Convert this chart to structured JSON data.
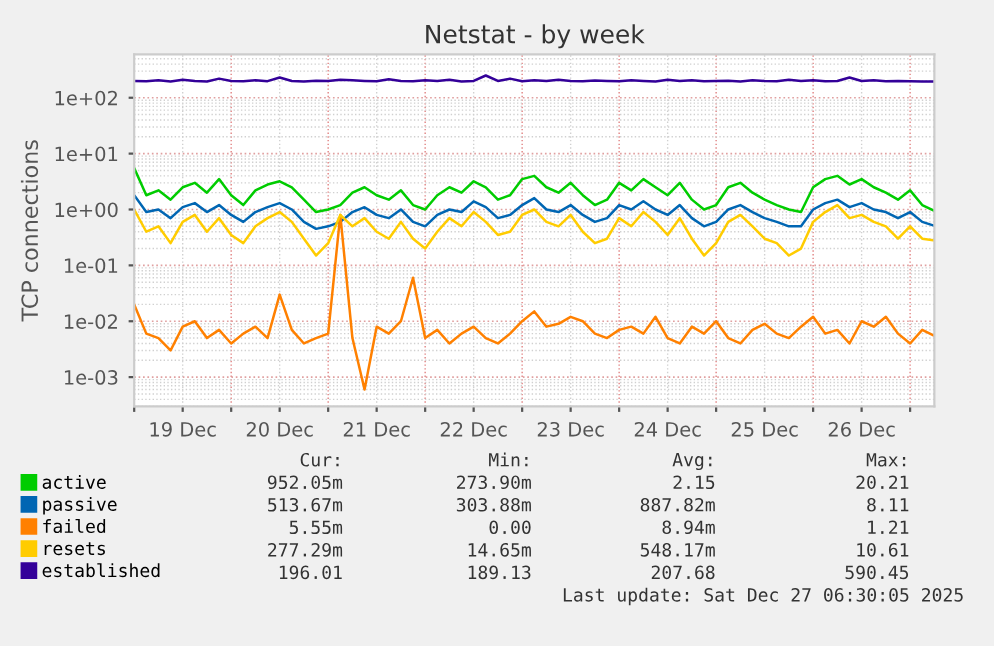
{
  "chart_data": {
    "type": "line",
    "title": "Netstat - by week",
    "ylabel": "TCP connections",
    "log": "y",
    "grid": true,
    "legend": "bottom",
    "marker": "none",
    "line_style": "solid",
    "xlim": [
      "2025-12-19T00:00",
      "2025-12-27T06:00"
    ],
    "xticks": [
      {
        "value": "2025-12-19T00:00",
        "label": null
      },
      {
        "value": "2025-12-20T00:00",
        "label": null
      },
      {
        "value": "2025-12-21T00:00",
        "label": null
      },
      {
        "value": "2025-12-22T00:00",
        "label": null
      },
      {
        "value": "2025-12-23T00:00",
        "label": null
      },
      {
        "value": "2025-12-24T00:00",
        "label": null
      },
      {
        "value": "2025-12-25T00:00",
        "label": null
      },
      {
        "value": "2025-12-26T00:00",
        "label": null
      },
      {
        "value": "2025-12-27T00:00",
        "label": null
      },
      {
        "value": "2025-12-19T12:00",
        "label": "19 Dec"
      },
      {
        "value": "2025-12-20T12:00",
        "label": "20 Dec"
      },
      {
        "value": "2025-12-21T12:00",
        "label": "21 Dec"
      },
      {
        "value": "2025-12-22T12:00",
        "label": "22 Dec"
      },
      {
        "value": "2025-12-23T12:00",
        "label": "23 Dec"
      },
      {
        "value": "2025-12-24T12:00",
        "label": "24 Dec"
      },
      {
        "value": "2025-12-25T12:00",
        "label": "25 Dec"
      },
      {
        "value": "2025-12-26T12:00",
        "label": "26 Dec"
      }
    ],
    "ylim": [
      0.0003,
      600
    ],
    "yticks": [
      {
        "value": 0.001,
        "label": "1e-03"
      },
      {
        "value": 0.01,
        "label": "1e-02"
      },
      {
        "value": 0.1,
        "label": "1e-01"
      },
      {
        "value": 1,
        "label": "1e+00"
      },
      {
        "value": 10,
        "label": "1e+01"
      },
      {
        "value": 100,
        "label": "1e+02"
      }
    ],
    "x": [
      "2025-12-19T00:00",
      "2025-12-19T03:00",
      "2025-12-19T06:00",
      "2025-12-19T09:00",
      "2025-12-19T12:00",
      "2025-12-19T15:00",
      "2025-12-19T18:00",
      "2025-12-19T21:00",
      "2025-12-20T00:00",
      "2025-12-20T03:00",
      "2025-12-20T06:00",
      "2025-12-20T09:00",
      "2025-12-20T12:00",
      "2025-12-20T15:00",
      "2025-12-20T18:00",
      "2025-12-20T21:00",
      "2025-12-21T00:00",
      "2025-12-21T03:00",
      "2025-12-21T06:00",
      "2025-12-21T09:00",
      "2025-12-21T12:00",
      "2025-12-21T15:00",
      "2025-12-21T18:00",
      "2025-12-21T21:00",
      "2025-12-22T00:00",
      "2025-12-22T03:00",
      "2025-12-22T06:00",
      "2025-12-22T09:00",
      "2025-12-22T12:00",
      "2025-12-22T15:00",
      "2025-12-22T18:00",
      "2025-12-22T21:00",
      "2025-12-23T00:00",
      "2025-12-23T03:00",
      "2025-12-23T06:00",
      "2025-12-23T09:00",
      "2025-12-23T12:00",
      "2025-12-23T15:00",
      "2025-12-23T18:00",
      "2025-12-23T21:00",
      "2025-12-24T00:00",
      "2025-12-24T03:00",
      "2025-12-24T06:00",
      "2025-12-24T09:00",
      "2025-12-24T12:00",
      "2025-12-24T15:00",
      "2025-12-24T18:00",
      "2025-12-24T21:00",
      "2025-12-25T00:00",
      "2025-12-25T03:00",
      "2025-12-25T06:00",
      "2025-12-25T09:00",
      "2025-12-25T12:00",
      "2025-12-25T15:00",
      "2025-12-25T18:00",
      "2025-12-25T21:00",
      "2025-12-26T00:00",
      "2025-12-26T03:00",
      "2025-12-26T06:00",
      "2025-12-26T09:00",
      "2025-12-26T12:00",
      "2025-12-26T15:00",
      "2025-12-26T18:00",
      "2025-12-26T21:00",
      "2025-12-27T00:00",
      "2025-12-27T03:00",
      "2025-12-27T06:00"
    ],
    "series": [
      {
        "name": "active",
        "color": "#00cc00",
        "values": [
          5.5,
          1.8,
          2.2,
          1.5,
          2.5,
          3.0,
          2.0,
          3.5,
          1.8,
          1.2,
          2.2,
          2.8,
          3.2,
          2.5,
          1.5,
          0.9,
          1.0,
          1.2,
          2.0,
          2.5,
          1.8,
          1.5,
          2.2,
          1.2,
          1.0,
          1.8,
          2.5,
          2.0,
          3.2,
          2.5,
          1.5,
          1.8,
          3.5,
          4.0,
          2.5,
          2.0,
          3.0,
          1.8,
          1.2,
          1.5,
          3.0,
          2.2,
          3.5,
          2.5,
          1.8,
          3.0,
          1.5,
          1.0,
          1.2,
          2.5,
          3.0,
          2.0,
          1.5,
          1.2,
          1.0,
          0.9,
          2.5,
          3.5,
          4.0,
          2.8,
          3.5,
          2.5,
          2.0,
          1.5,
          2.2,
          1.2,
          0.95
        ]
      },
      {
        "name": "passive",
        "color": "#0066b3",
        "values": [
          1.8,
          0.9,
          1.0,
          0.7,
          1.1,
          1.3,
          0.9,
          1.2,
          0.8,
          0.6,
          0.9,
          1.1,
          1.3,
          1.0,
          0.6,
          0.45,
          0.5,
          0.6,
          0.9,
          1.1,
          0.8,
          0.7,
          1.0,
          0.6,
          0.5,
          0.8,
          1.0,
          0.9,
          1.4,
          1.1,
          0.7,
          0.8,
          1.2,
          1.6,
          1.0,
          0.9,
          1.2,
          0.8,
          0.6,
          0.7,
          1.2,
          1.0,
          1.4,
          1.0,
          0.8,
          1.2,
          0.7,
          0.5,
          0.6,
          1.0,
          1.2,
          0.9,
          0.7,
          0.6,
          0.5,
          0.5,
          1.0,
          1.3,
          1.5,
          1.1,
          1.3,
          1.0,
          0.9,
          0.7,
          0.9,
          0.6,
          0.51
        ]
      },
      {
        "name": "failed",
        "color": "#ff8000",
        "values": [
          0.02,
          0.006,
          0.005,
          0.003,
          0.008,
          0.01,
          0.005,
          0.007,
          0.004,
          0.006,
          0.008,
          0.005,
          0.03,
          0.007,
          0.004,
          0.005,
          0.006,
          0.8,
          0.005,
          0.0006,
          0.008,
          0.006,
          0.01,
          0.06,
          0.005,
          0.007,
          0.004,
          0.006,
          0.008,
          0.005,
          0.004,
          0.006,
          0.01,
          0.015,
          0.008,
          0.009,
          0.012,
          0.01,
          0.006,
          0.005,
          0.007,
          0.008,
          0.006,
          0.012,
          0.005,
          0.004,
          0.008,
          0.006,
          0.01,
          0.005,
          0.004,
          0.007,
          0.009,
          0.006,
          0.005,
          0.008,
          0.012,
          0.006,
          0.007,
          0.004,
          0.01,
          0.008,
          0.012,
          0.006,
          0.004,
          0.007,
          0.0055
        ]
      },
      {
        "name": "resets",
        "color": "#ffcc00",
        "values": [
          1.0,
          0.4,
          0.5,
          0.25,
          0.6,
          0.8,
          0.4,
          0.7,
          0.35,
          0.25,
          0.5,
          0.7,
          0.9,
          0.6,
          0.3,
          0.15,
          0.25,
          0.8,
          0.5,
          0.7,
          0.4,
          0.3,
          0.6,
          0.3,
          0.2,
          0.4,
          0.7,
          0.5,
          0.9,
          0.6,
          0.35,
          0.4,
          0.8,
          1.0,
          0.6,
          0.5,
          0.8,
          0.4,
          0.25,
          0.3,
          0.7,
          0.5,
          0.9,
          0.6,
          0.35,
          0.7,
          0.3,
          0.15,
          0.25,
          0.6,
          0.8,
          0.5,
          0.3,
          0.25,
          0.15,
          0.2,
          0.6,
          0.9,
          1.2,
          0.7,
          0.8,
          0.6,
          0.5,
          0.3,
          0.5,
          0.3,
          0.28
        ]
      },
      {
        "name": "established",
        "color": "#330099",
        "values": [
          200,
          198,
          205,
          196,
          210,
          200,
          195,
          220,
          200,
          197,
          205,
          198,
          230,
          200,
          196,
          202,
          199,
          210,
          205,
          200,
          197,
          215,
          200,
          198,
          205,
          200,
          210,
          196,
          200,
          250,
          200,
          220,
          198,
          205,
          200,
          210,
          200,
          197,
          203,
          200,
          198,
          205,
          200,
          196,
          210,
          200,
          205,
          198,
          200,
          202,
          196,
          205,
          200,
          198,
          210,
          200,
          205,
          197,
          200,
          230,
          200,
          205,
          198,
          200,
          197,
          196,
          196
        ]
      }
    ],
    "annotations": [
      "Cur:",
      "Min:",
      "Avg:",
      "Max:",
      "952.05m",
      "273.90m",
      "2.15",
      "20.21",
      "513.67m",
      "303.88m",
      "887.82m",
      "8.11",
      "5.55m",
      "0.00",
      "8.94m",
      "1.21",
      "277.29m",
      "14.65m",
      "548.17m",
      "10.61",
      "196.01",
      "189.13",
      "207.68",
      "590.45",
      "Last update: Sat Dec 27 06:30:05 2025"
    ]
  }
}
